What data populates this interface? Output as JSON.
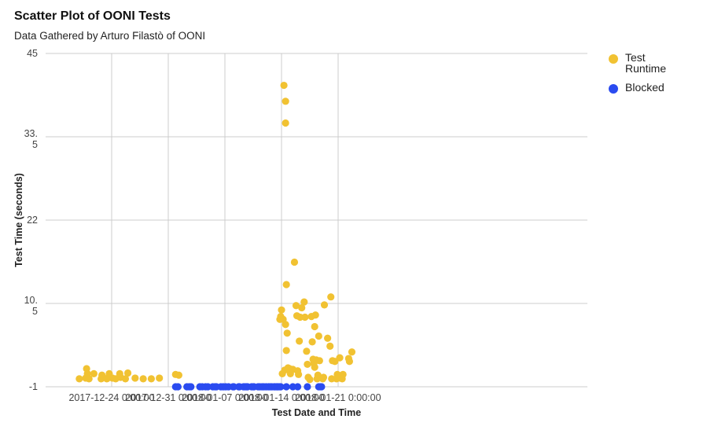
{
  "chart_data": {
    "type": "scatter",
    "title": "Scatter Plot of OONI Tests",
    "subtitle": "Data Gathered by Arturo Filastò of OONI",
    "xlabel": "Test Date and Time",
    "ylabel": "Test Time (seconds)",
    "x_unit": "days",
    "xlim": [
      -6.1,
      29.4
    ],
    "ylim": [
      -1,
      45
    ],
    "x_ticks": [
      {
        "value": 0,
        "label": "2017-12-24 0:00:00"
      },
      {
        "value": 7,
        "label": "2017-12-31 0:00:00"
      },
      {
        "value": 14,
        "label": "2018-01-07 0:00:00"
      },
      {
        "value": 21,
        "label": "2018-01-14 0:00:00"
      },
      {
        "value": 28,
        "label": "2018-01-21 0:00:00"
      }
    ],
    "y_ticks": [
      {
        "value": -1,
        "label": "-1"
      },
      {
        "value": 10.5,
        "label": "10.\n5"
      },
      {
        "value": 22,
        "label": "22"
      },
      {
        "value": 33.5,
        "label": "33.\n5"
      },
      {
        "value": 45,
        "label": "45"
      }
    ],
    "grid": true,
    "legend_position": "right",
    "series": [
      {
        "name": "Test Runtime",
        "color": "#f1c232",
        "points": [
          [
            -4,
            0.1
          ],
          [
            -3.2,
            0.2
          ],
          [
            -3.1,
            1.5
          ],
          [
            -3.0,
            0.8
          ],
          [
            -2.8,
            0.1
          ],
          [
            -2.2,
            0.8
          ],
          [
            -1.3,
            0.1
          ],
          [
            -1.2,
            0.6
          ],
          [
            -0.6,
            0.1
          ],
          [
            -0.5,
            0.2
          ],
          [
            -0.3,
            0.8
          ],
          [
            0.1,
            0.2
          ],
          [
            0.5,
            0.1
          ],
          [
            1.0,
            0.8
          ],
          [
            1.1,
            0.3
          ],
          [
            1.7,
            0.1
          ],
          [
            2.0,
            0.9
          ],
          [
            2.9,
            0.2
          ],
          [
            3.9,
            0.1
          ],
          [
            4.9,
            0.1
          ],
          [
            5.9,
            0.2
          ],
          [
            7.9,
            0.7
          ],
          [
            8.3,
            0.6
          ],
          [
            20.8,
            8.3
          ],
          [
            20.9,
            8.7
          ],
          [
            21.0,
            9.6
          ],
          [
            21.1,
            0.8
          ],
          [
            21.2,
            8.3
          ],
          [
            21.5,
            7.6
          ],
          [
            21.6,
            4.0
          ],
          [
            21.7,
            6.4
          ],
          [
            22.1,
            1.1
          ],
          [
            21.4,
            1.3
          ],
          [
            21.3,
            40.6
          ],
          [
            21.5,
            38.4
          ],
          [
            21.5,
            35.4
          ],
          [
            21.6,
            13.1
          ],
          [
            21.8,
            1.6
          ],
          [
            22.0,
            1.5
          ],
          [
            22.1,
            0.8
          ],
          [
            22.4,
            1.4
          ],
          [
            22.6,
            16.2
          ],
          [
            22.8,
            10.2
          ],
          [
            22.9,
            8.8
          ],
          [
            23.0,
            1.2
          ],
          [
            23.1,
            0.7
          ],
          [
            23.3,
            8.6
          ],
          [
            23.5,
            9.9
          ],
          [
            23.8,
            10.7
          ],
          [
            23.9,
            8.6
          ],
          [
            23.2,
            5.3
          ],
          [
            24.1,
            3.9
          ],
          [
            24.2,
            2.1
          ],
          [
            24.3,
            0.3
          ],
          [
            24.5,
            0.0
          ],
          [
            24.7,
            8.7
          ],
          [
            24.8,
            5.2
          ],
          [
            24.9,
            2.8
          ],
          [
            25.0,
            2.2
          ],
          [
            25.1,
            7.3
          ],
          [
            25.2,
            8.9
          ],
          [
            25.3,
            2.7
          ],
          [
            25.4,
            0.1
          ],
          [
            25.5,
            0.6
          ],
          [
            25.6,
            6.0
          ],
          [
            25.7,
            2.6
          ],
          [
            25.1,
            1.7
          ],
          [
            26.1,
            0.1
          ],
          [
            26.2,
            0.3
          ],
          [
            26.3,
            10.3
          ],
          [
            26.7,
            5.7
          ],
          [
            27.1,
            11.4
          ],
          [
            27.0,
            4.6
          ],
          [
            27.3,
            2.6
          ],
          [
            27.6,
            2.5
          ],
          [
            27.8,
            0.1
          ],
          [
            27.9,
            0.7
          ],
          [
            27.2,
            0.1
          ],
          [
            28.0,
            0.2
          ],
          [
            28.2,
            3.0
          ],
          [
            28.5,
            0.1
          ],
          [
            28.6,
            0.7
          ],
          [
            29.3,
            2.9
          ],
          [
            29.4,
            2.5
          ],
          [
            29.7,
            3.8
          ]
        ]
      },
      {
        "name": "Blocked",
        "color": "#2a4bf0",
        "points": [
          [
            7.9,
            -1
          ],
          [
            8.2,
            -1
          ],
          [
            9.3,
            -1
          ],
          [
            9.6,
            -1
          ],
          [
            9.8,
            -1
          ],
          [
            10.9,
            -1
          ],
          [
            11.2,
            -1
          ],
          [
            11.6,
            -1
          ],
          [
            11.9,
            -1
          ],
          [
            12.5,
            -1
          ],
          [
            12.8,
            -1
          ],
          [
            12.95,
            -1
          ],
          [
            13.5,
            -1
          ],
          [
            13.8,
            -1
          ],
          [
            14.1,
            -1
          ],
          [
            14.45,
            -1
          ],
          [
            15.0,
            -1
          ],
          [
            15.1,
            -1
          ],
          [
            15.7,
            -1
          ],
          [
            15.8,
            -1
          ],
          [
            16.3,
            -1
          ],
          [
            16.5,
            -1
          ],
          [
            16.7,
            -1
          ],
          [
            16.8,
            -1
          ],
          [
            17.3,
            -1
          ],
          [
            17.5,
            -1
          ],
          [
            17.6,
            -1
          ],
          [
            18.1,
            -1
          ],
          [
            18.3,
            -1
          ],
          [
            18.6,
            -1
          ],
          [
            18.8,
            -1
          ],
          [
            19.1,
            -1
          ],
          [
            19.4,
            -1
          ],
          [
            19.6,
            -1
          ],
          [
            19.8,
            -1
          ],
          [
            20.1,
            -1
          ],
          [
            20.2,
            -1
          ],
          [
            20.4,
            -1
          ],
          [
            20.5,
            -1
          ],
          [
            20.6,
            -1
          ],
          [
            20.8,
            -1
          ],
          [
            20.9,
            -1
          ],
          [
            21.6,
            -1
          ],
          [
            22.4,
            -1
          ],
          [
            23.0,
            -1
          ],
          [
            24.2,
            -1
          ],
          [
            25.6,
            -1
          ],
          [
            25.8,
            -1
          ],
          [
            25.95,
            -1
          ]
        ]
      }
    ]
  }
}
